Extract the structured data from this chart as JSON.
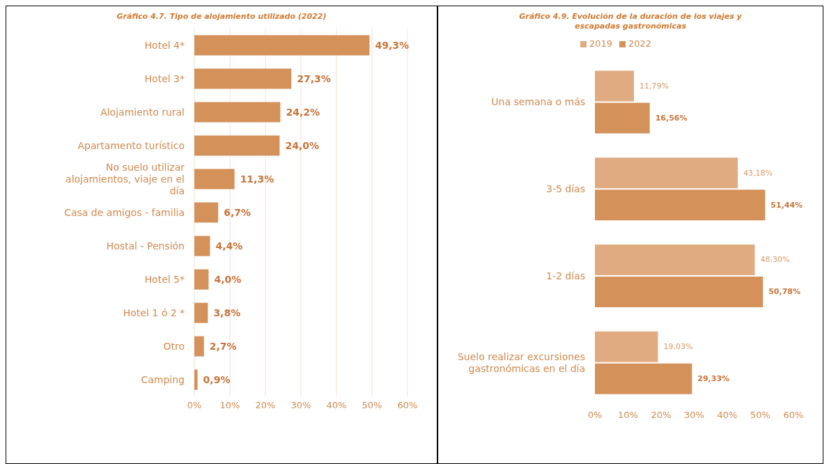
{
  "chart_data": [
    {
      "type": "bar",
      "orientation": "horizontal",
      "title": "Gráfico 4.7. Tipo de alojamiento utilizado (2022)",
      "categories": [
        "Hotel 4*",
        "Hotel 3*",
        "Alojamiento rural",
        "Apartamento turístico",
        "No suelo utilizar alojamientos, viaje en el día",
        "Casa de amigos - familia",
        "Hostal - Pensión",
        "Hotel 5*",
        "Hotel 1 ó 2 *",
        "Otro",
        "Camping"
      ],
      "series": [
        {
          "color": "#d4915a",
          "values": [
            49.3,
            27.3,
            24.2,
            24.0,
            11.3,
            6.7,
            4.4,
            4.0,
            3.8,
            2.7,
            0.9
          ],
          "value_labels": [
            "49,3%",
            "27,3%",
            "24,2%",
            "24,0%",
            "11,3%",
            "6,7%",
            "4,4%",
            "4,0%",
            "3,8%",
            "2,7%",
            "0,9%"
          ]
        }
      ],
      "xlim": [
        0,
        60
      ],
      "xticks": [
        {
          "value": 0,
          "label": "0%"
        },
        {
          "value": 10,
          "label": "10%"
        },
        {
          "value": 20,
          "label": "20%"
        },
        {
          "value": 30,
          "label": "30%"
        },
        {
          "value": 40,
          "label": "40%"
        },
        {
          "value": 50,
          "label": "50%"
        },
        {
          "value": 60,
          "label": "60%"
        }
      ],
      "grid": "x",
      "legend": false
    },
    {
      "type": "bar",
      "orientation": "horizontal",
      "title": "Gráfico 4.9.  Evolución de la duración de los viajes y escapadas gastronómicas",
      "categories": [
        "Una semana o más",
        "3-5 días",
        "1-2 días",
        "Suelo realizar excursiones gastronómicas en el día"
      ],
      "series": [
        {
          "name": "2019",
          "color": "#e0ab80",
          "values": [
            11.79,
            43.18,
            48.3,
            19.03
          ],
          "value_labels": [
            "11,79%",
            "43,18%",
            "48,30%",
            "19,03%"
          ]
        },
        {
          "name": "2022",
          "color": "#d4915a",
          "values": [
            16.56,
            51.44,
            50.78,
            29.33
          ],
          "value_labels": [
            "16,56%",
            "51,44%",
            "50,78%",
            "29,33%"
          ]
        }
      ],
      "xlim": [
        0,
        60
      ],
      "xticks": [
        {
          "value": 0,
          "label": "0%"
        },
        {
          "value": 10,
          "label": "10%"
        },
        {
          "value": 20,
          "label": "20%"
        },
        {
          "value": 30,
          "label": "30%"
        },
        {
          "value": 40,
          "label": "40%"
        },
        {
          "value": 50,
          "label": "50%"
        },
        {
          "value": 60,
          "label": "60%"
        }
      ],
      "grid": false,
      "legend": "top"
    }
  ]
}
